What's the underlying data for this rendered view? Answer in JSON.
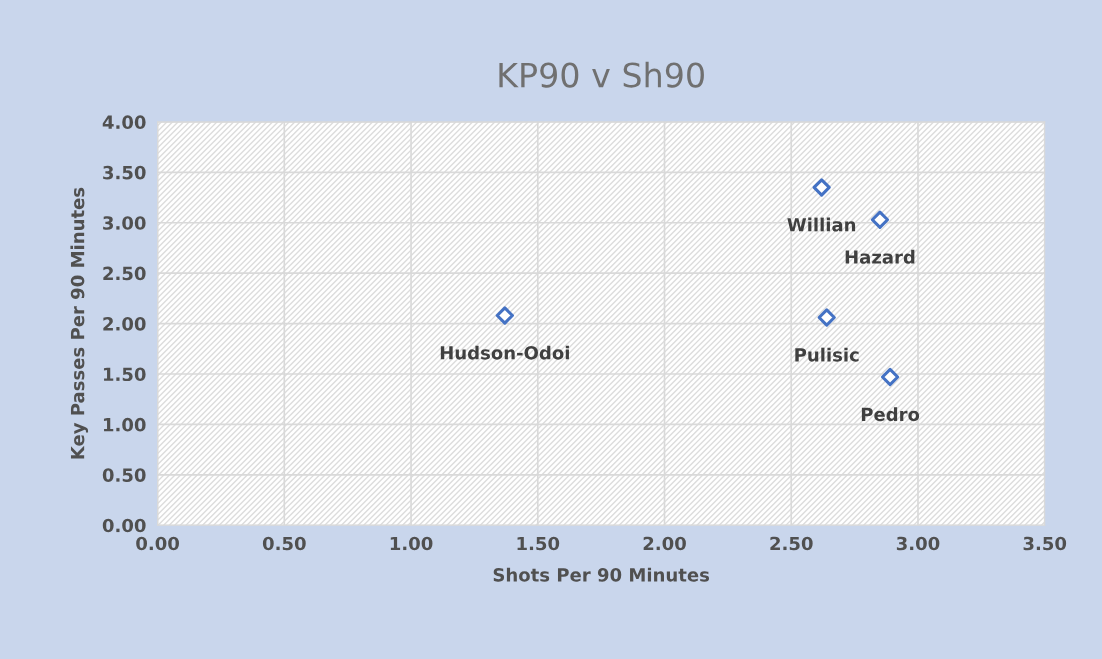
{
  "chart_data": {
    "type": "scatter",
    "title": "KP90 v Sh90",
    "xlabel": "Shots Per 90 Minutes",
    "ylabel": "Key Passes Per 90 Minutes",
    "x": [
      2.62,
      2.85,
      1.37,
      2.64,
      2.89
    ],
    "series": [
      {
        "color": "#4472c4",
        "values": [
          3.35,
          3.03,
          2.08,
          2.06,
          1.47
        ]
      }
    ],
    "annotations": [
      {
        "text": "Willian",
        "x": 2.62,
        "y": 3.35
      },
      {
        "text": "Hazard",
        "x": 2.85,
        "y": 3.03
      },
      {
        "text": "Hudson-Odoi",
        "x": 1.37,
        "y": 2.08
      },
      {
        "text": "Pulisic",
        "x": 2.64,
        "y": 2.06
      },
      {
        "text": "Pedro",
        "x": 2.89,
        "y": 1.47
      }
    ],
    "xlim": [
      0,
      3.5
    ],
    "ylim": [
      0,
      4
    ],
    "xticks": [
      {
        "value": 0,
        "label": "0.00"
      },
      {
        "value": 0.5,
        "label": "0.50"
      },
      {
        "value": 1,
        "label": "1.00"
      },
      {
        "value": 1.5,
        "label": "1.50"
      },
      {
        "value": 2,
        "label": "2.00"
      },
      {
        "value": 2.5,
        "label": "2.50"
      },
      {
        "value": 3,
        "label": "3.00"
      },
      {
        "value": 3.5,
        "label": "3.50"
      }
    ],
    "yticks": [
      {
        "value": 0,
        "label": "0.00"
      },
      {
        "value": 0.5,
        "label": "0.50"
      },
      {
        "value": 1,
        "label": "1.00"
      },
      {
        "value": 1.5,
        "label": "1.50"
      },
      {
        "value": 2,
        "label": "2.00"
      },
      {
        "value": 2.5,
        "label": "2.50"
      },
      {
        "value": 3,
        "label": "3.00"
      },
      {
        "value": 3.5,
        "label": "3.50"
      },
      {
        "value": 4,
        "label": "4.00"
      }
    ],
    "grid": true,
    "marker": "diamond",
    "legend": false
  }
}
